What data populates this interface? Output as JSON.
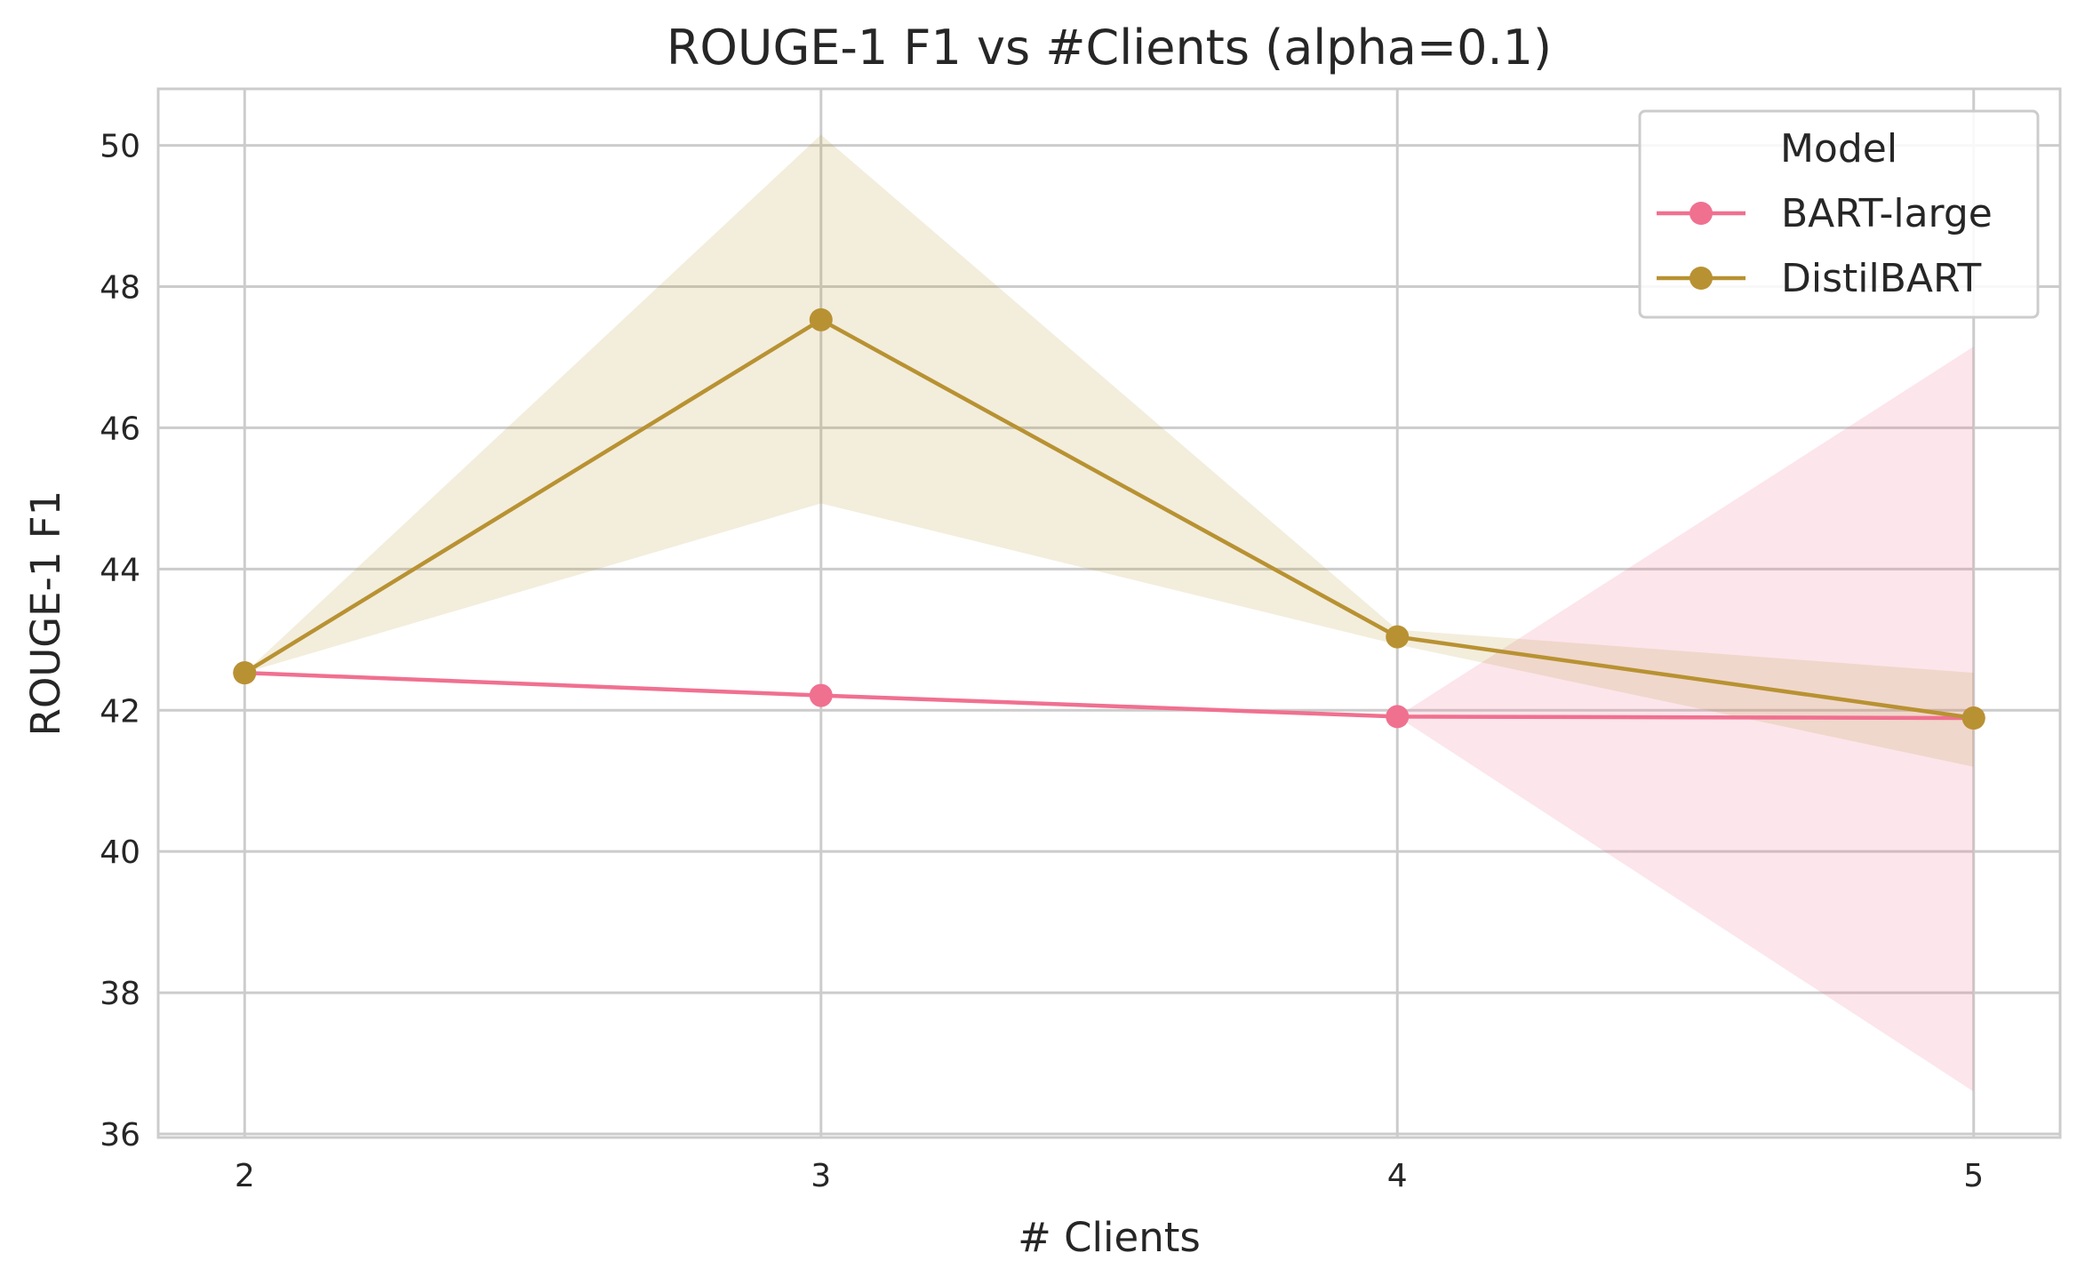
{
  "chart_data": {
    "type": "line",
    "title": "ROUGE-1 F1 vs #Clients (alpha=0.1)",
    "xlabel": "# Clients",
    "ylabel": "ROUGE-1 F1",
    "x": [
      2,
      3,
      4,
      5
    ],
    "x_tick_labels": [
      "2",
      "3",
      "4",
      "5"
    ],
    "xlim": [
      1.85,
      5.15
    ],
    "ylim": [
      35.95,
      50.8
    ],
    "y_ticks": [
      36,
      38,
      40,
      42,
      44,
      46,
      48,
      50
    ],
    "y_tick_labels": [
      "36",
      "38",
      "40",
      "42",
      "44",
      "46",
      "48",
      "50"
    ],
    "grid": true,
    "legend": {
      "title": "Model",
      "placement": "top-right"
    },
    "series": [
      {
        "name": "BART-large",
        "color": "#f07090",
        "band_opacity": 0.18,
        "values": [
          42.53,
          42.21,
          41.91,
          41.89
        ],
        "ci_low": [
          42.53,
          42.21,
          41.91,
          36.6
        ],
        "ci_high": [
          42.53,
          42.21,
          41.91,
          47.15
        ]
      },
      {
        "name": "DistilBART",
        "color": "#b89232",
        "band_opacity": 0.17,
        "values": [
          42.53,
          47.53,
          43.04,
          41.89
        ],
        "ci_low": [
          42.53,
          44.93,
          42.93,
          41.2
        ],
        "ci_high": [
          42.53,
          50.15,
          43.14,
          42.53
        ]
      }
    ]
  }
}
